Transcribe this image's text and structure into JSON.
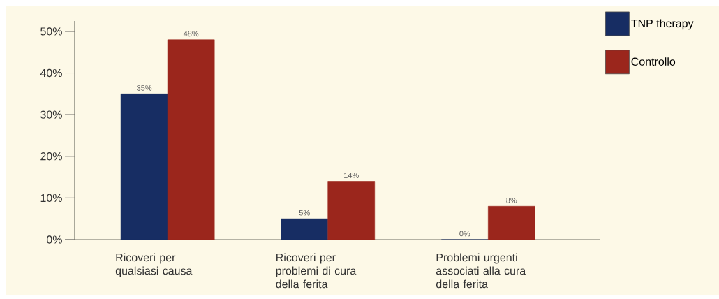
{
  "chart_data": {
    "type": "bar",
    "categories": [
      "Ricoveri per qualsiasi causa",
      "Ricoveri per problemi di cura della ferita",
      "Problemi urgenti associati alla cura della ferita"
    ],
    "series": [
      {
        "name": "TNP therapy",
        "color": "#172d63",
        "values": [
          35,
          5,
          0
        ],
        "value_labels": [
          "35%",
          "5%",
          "0%"
        ]
      },
      {
        "name": "Controllo",
        "color": "#9b261c",
        "values": [
          48,
          14,
          8
        ],
        "value_labels": [
          "48%",
          "14%",
          "8%"
        ]
      }
    ],
    "ylim": [
      0,
      52.5
    ],
    "yticks": [
      {
        "value": 0,
        "label": "0%"
      },
      {
        "value": 10,
        "label": "10%"
      },
      {
        "value": 20,
        "label": "20%"
      },
      {
        "value": 30,
        "label": "30%"
      },
      {
        "value": 40,
        "label": "40%"
      },
      {
        "value": 50,
        "label": "50%"
      }
    ],
    "grid": false,
    "legend": "top right"
  }
}
